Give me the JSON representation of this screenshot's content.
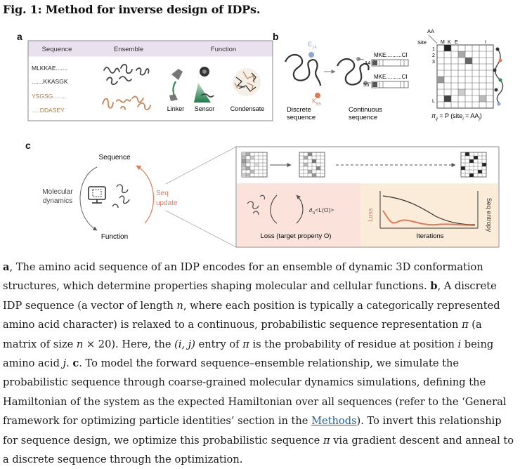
{
  "title": "Fig. 1: Method for inverse design of IDPs.",
  "panel_labels": {
    "a": "a",
    "b": "b",
    "c": "c"
  },
  "panel_a": {
    "headers": [
      "Sequence",
      "Ensemble",
      "Function"
    ],
    "sequences": [
      {
        "text": "MLKKAE.......",
        "color": "#222222"
      },
      {
        "text": ".......KKASGK",
        "color": "#222222"
      },
      {
        "text": "YSGSG........",
        "color": "#b07a3e"
      },
      {
        "text": ".....DDASEY",
        "color": "#b07a3e"
      }
    ],
    "function_labels": [
      "Linker",
      "Sensor",
      "Condensate"
    ]
  },
  "panel_b": {
    "residue_top": "E",
    "residue_top_sub": "14",
    "residue_bottom": "K",
    "residue_bottom_sub": "55",
    "seq_label_top": "MKE..........CI",
    "seq_label_bottom": "MKE..........CI",
    "row_top": "14",
    "row_bottom": "55",
    "discrete_label": [
      "Discrete",
      "sequence"
    ],
    "continuous_label": [
      "Continuous",
      "sequence"
    ],
    "matrix_aa_label": "AA",
    "matrix_site_label": "Site",
    "matrix_cols": [
      "M",
      "K",
      "E",
      "I"
    ],
    "matrix_rows": [
      "1",
      "2",
      "3",
      "L"
    ],
    "formula_parts": {
      "pi": "π",
      "sub": "ij",
      "eq": " = P (site",
      "sub2": "i",
      "aa": " = AA",
      "sub3": "j",
      "close": ")"
    }
  },
  "panel_c": {
    "sequence_label": "Sequence",
    "md_label": [
      "Molecular",
      "dynamics"
    ],
    "function_label": "Function",
    "seq_update_label": [
      "Seq",
      "update"
    ],
    "gradient_label": "∂",
    "gradient_sub": "π",
    "gradient_rest": "<L(O)>",
    "loss_label": "Loss (target property O)",
    "loss_axis": "Loss",
    "entropy_axis": "Seq entropy",
    "iterations_label": "Iterations"
  },
  "colors": {
    "accent_orange": "#e07b5a",
    "band_lavender": "#e9e1ee",
    "loss_panel": "#fbe3dc",
    "entropy_panel": "#fbecd9",
    "sensor_green": "#2e8b57",
    "residue_blue": "#8aa6d8"
  },
  "caption": {
    "a_label": "a",
    "a_text": ", The amino acid sequence of an IDP encodes for an ensemble of dynamic 3D conformation structures, which determine properties shaping molecular and cellular functions. ",
    "b_label": "b",
    "b_text1": ", A discrete IDP sequence (a vector of length ",
    "n1": "n",
    "b_text2": ", where each position is typically a categorically represented amino acid character) is relaxed to a continuous, probabilistic sequence representation ",
    "pi1": "π",
    "b_text3": " (a matrix of size ",
    "n2": "n",
    "b_text4": " × 20). Here, the ",
    "ij": "(i, j)",
    "b_text5": " entry of ",
    "pi2": "π",
    "b_text6": " is the probability of residue at position ",
    "i1": "i",
    "b_text7": " being amino acid ",
    "j1": "j",
    "b_text8": ". ",
    "c_label": "c",
    "c_text1": ". To model the forward sequence–ensemble relationship, we simulate the probabilistic sequence through coarse-grained molecular dynamics simulations, defining the Hamiltonian of the system as the expected Hamiltonian over all sequences (refer to the ‘General framework for optimizing particle identities’ section in the ",
    "methods_link": "Methods",
    "c_text2": "). To invert this relationship for sequence design, we optimize this probabilistic sequence ",
    "pi3": "π",
    "c_text3": " via gradient descent and anneal to a discrete sequence through the optimization."
  }
}
